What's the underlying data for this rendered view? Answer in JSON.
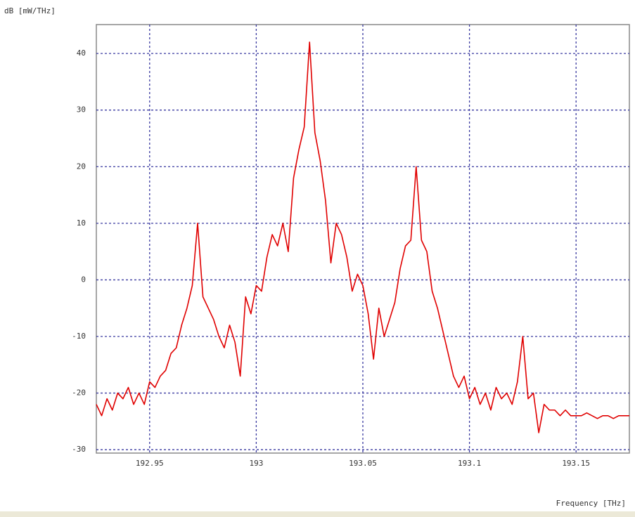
{
  "chart_data": {
    "type": "line",
    "y_label": "dB [mW/THz]",
    "x_label": "Frequency [THz]",
    "x": [
      192.925,
      192.9275,
      192.93,
      192.9325,
      192.935,
      192.9375,
      192.94,
      192.9425,
      192.945,
      192.9475,
      192.95,
      192.9525,
      192.955,
      192.9575,
      192.96,
      192.9625,
      192.965,
      192.9675,
      192.97,
      192.9725,
      192.975,
      192.9775,
      192.98,
      192.9825,
      192.985,
      192.9875,
      192.99,
      192.9925,
      192.995,
      192.9975,
      193,
      193.0025,
      193.005,
      193.0075,
      193.01,
      193.0125,
      193.015,
      193.0175,
      193.02,
      193.0225,
      193.025,
      193.0275,
      193.03,
      193.0325,
      193.035,
      193.0375,
      193.04,
      193.0425,
      193.045,
      193.0475,
      193.05,
      193.0525,
      193.055,
      193.0575,
      193.06,
      193.0625,
      193.065,
      193.0675,
      193.07,
      193.0725,
      193.075,
      193.0775,
      193.08,
      193.0825,
      193.085,
      193.0875,
      193.09,
      193.0925,
      193.095,
      193.0975,
      193.1,
      193.1025,
      193.105,
      193.1075,
      193.11,
      193.1125,
      193.115,
      193.1175,
      193.12,
      193.1225,
      193.125,
      193.1275,
      193.13,
      193.1325,
      193.135,
      193.1375,
      193.14,
      193.1425,
      193.145,
      193.1475,
      193.15,
      193.1525,
      193.155,
      193.1575,
      193.16,
      193.1625,
      193.165,
      193.1675,
      193.17,
      193.1725,
      193.175
    ],
    "values": [
      -22,
      -24,
      -21,
      -23,
      -20,
      -21,
      -19,
      -22,
      -20,
      -22,
      -18,
      -19,
      -17,
      -16,
      -13,
      -12,
      -8,
      -5,
      -1,
      10,
      -3,
      -5,
      -7,
      -10,
      -12,
      -8,
      -11,
      -17,
      -3,
      -6,
      -1,
      -2,
      4,
      8,
      6,
      10,
      5,
      18,
      23,
      27,
      42,
      26,
      21,
      14,
      3,
      10,
      8,
      4,
      -2,
      1,
      -1,
      -6,
      -14,
      -5,
      -10,
      -7,
      -4,
      2,
      6,
      7,
      20,
      7,
      5,
      -2,
      -5,
      -9,
      -13,
      -17,
      -19,
      -17,
      -21,
      -19,
      -22,
      -20,
      -23,
      -19,
      -21,
      -20,
      -22,
      -18,
      -10,
      -21,
      -20,
      -27,
      -22,
      -23,
      -23,
      -24,
      -23,
      -24,
      -24,
      -24,
      -23.5,
      -24,
      -24.5,
      -24,
      -24,
      -24.5,
      -24,
      -24,
      -24
    ],
    "color": "#e00000",
    "xlim": [
      192.925,
      193.175
    ],
    "xticks": [
      192.95,
      193,
      193.05,
      193.1,
      193.15
    ],
    "ylim": [
      -30.6,
      45.1
    ],
    "yticks": [
      -30,
      -20,
      -10,
      0,
      10,
      20,
      30,
      40
    ],
    "grid": true
  }
}
